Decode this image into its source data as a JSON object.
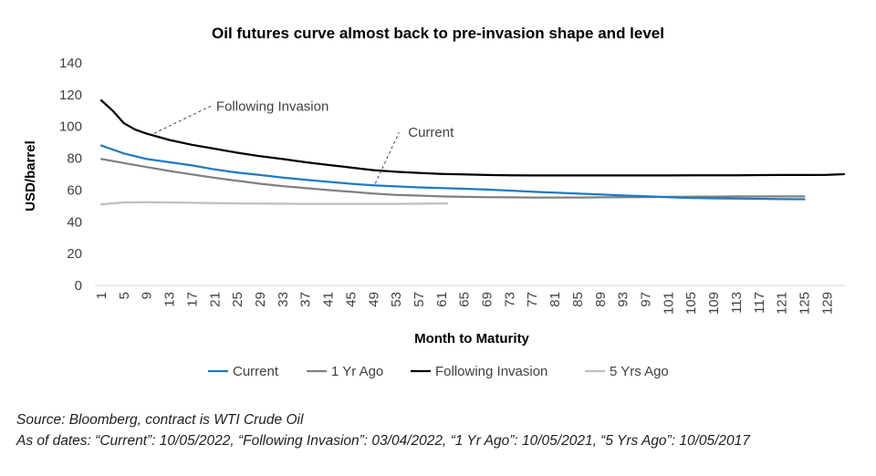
{
  "chart_data": {
    "type": "line",
    "title": "Oil futures curve almost back to pre-invasion  shape and level",
    "xlabel": "Month to Maturity",
    "ylabel": "USD/barrel",
    "xlim": [
      1,
      132
    ],
    "ylim": [
      0,
      140
    ],
    "yticks": [
      0,
      20,
      40,
      60,
      80,
      100,
      120,
      140
    ],
    "xtick_labels": [
      "1",
      "5",
      "9",
      "13",
      "17",
      "21",
      "25",
      "29",
      "33",
      "37",
      "41",
      "45",
      "49",
      "53",
      "57",
      "61",
      "65",
      "69",
      "73",
      "77",
      "81",
      "85",
      "89",
      "93",
      "97",
      "101",
      "105",
      "109",
      "113",
      "117",
      "121",
      "125",
      "129"
    ],
    "grid": false,
    "legend_position": "bottom",
    "series": [
      {
        "name": "Current",
        "color": "#1f7ac4",
        "points": [
          [
            1,
            88
          ],
          [
            5,
            83
          ],
          [
            9,
            79.5
          ],
          [
            13,
            77.5
          ],
          [
            17,
            75.5
          ],
          [
            21,
            73
          ],
          [
            25,
            71
          ],
          [
            29,
            69.5
          ],
          [
            33,
            67.8
          ],
          [
            37,
            66.5
          ],
          [
            41,
            65.2
          ],
          [
            45,
            64
          ],
          [
            49,
            63
          ],
          [
            53,
            62.3
          ],
          [
            57,
            61.7
          ],
          [
            61,
            61.2
          ],
          [
            65,
            60.8
          ],
          [
            69,
            60.3
          ],
          [
            73,
            59.7
          ],
          [
            77,
            59
          ],
          [
            81,
            58.4
          ],
          [
            85,
            57.8
          ],
          [
            89,
            57.2
          ],
          [
            93,
            56.6
          ],
          [
            97,
            56.1
          ],
          [
            101,
            55.5
          ],
          [
            105,
            55
          ],
          [
            109,
            54.8
          ],
          [
            113,
            54.6
          ],
          [
            117,
            54.5
          ],
          [
            121,
            54.3
          ],
          [
            125,
            54.2
          ]
        ]
      },
      {
        "name": "1 Yr Ago",
        "color": "#808080",
        "points": [
          [
            1,
            79.5
          ],
          [
            5,
            77
          ],
          [
            9,
            74.5
          ],
          [
            13,
            72
          ],
          [
            17,
            69.8
          ],
          [
            21,
            67.7
          ],
          [
            25,
            65.8
          ],
          [
            29,
            64
          ],
          [
            33,
            62.5
          ],
          [
            37,
            61.2
          ],
          [
            41,
            60
          ],
          [
            45,
            58.9
          ],
          [
            49,
            57.8
          ],
          [
            53,
            57
          ],
          [
            57,
            56.5
          ],
          [
            61,
            56
          ],
          [
            65,
            55.7
          ],
          [
            69,
            55.5
          ],
          [
            73,
            55.4
          ],
          [
            77,
            55.3
          ],
          [
            81,
            55.3
          ],
          [
            85,
            55.3
          ],
          [
            89,
            55.4
          ],
          [
            93,
            55.5
          ],
          [
            97,
            55.6
          ],
          [
            101,
            55.7
          ],
          [
            105,
            55.8
          ],
          [
            109,
            55.9
          ],
          [
            113,
            56
          ],
          [
            117,
            56
          ],
          [
            121,
            56
          ],
          [
            125,
            56
          ]
        ]
      },
      {
        "name": "Following Invasion",
        "color": "#000000",
        "points": [
          [
            1,
            116.5
          ],
          [
            3,
            110
          ],
          [
            5,
            102
          ],
          [
            7,
            98
          ],
          [
            9,
            95.5
          ],
          [
            11,
            93.5
          ],
          [
            13,
            91.5
          ],
          [
            17,
            88.5
          ],
          [
            21,
            86
          ],
          [
            25,
            83.5
          ],
          [
            29,
            81.3
          ],
          [
            33,
            79.5
          ],
          [
            37,
            77.5
          ],
          [
            41,
            75.8
          ],
          [
            45,
            74.2
          ],
          [
            49,
            72.5
          ],
          [
            53,
            71.5
          ],
          [
            57,
            70.8
          ],
          [
            61,
            70.2
          ],
          [
            65,
            69.8
          ],
          [
            69,
            69.5
          ],
          [
            73,
            69.3
          ],
          [
            77,
            69.2
          ],
          [
            81,
            69.2
          ],
          [
            85,
            69.2
          ],
          [
            89,
            69.2
          ],
          [
            93,
            69.2
          ],
          [
            97,
            69.2
          ],
          [
            101,
            69.2
          ],
          [
            105,
            69.3
          ],
          [
            109,
            69.3
          ],
          [
            113,
            69.3
          ],
          [
            117,
            69.4
          ],
          [
            121,
            69.5
          ],
          [
            125,
            69.5
          ],
          [
            129,
            69.6
          ],
          [
            132,
            70
          ]
        ]
      },
      {
        "name": "5 Yrs Ago",
        "color": "#bfbfbf",
        "points": [
          [
            1,
            51
          ],
          [
            5,
            52.2
          ],
          [
            9,
            52.3
          ],
          [
            13,
            52.2
          ],
          [
            17,
            52
          ],
          [
            21,
            51.8
          ],
          [
            25,
            51.6
          ],
          [
            29,
            51.5
          ],
          [
            33,
            51.4
          ],
          [
            37,
            51.3
          ],
          [
            41,
            51.3
          ],
          [
            45,
            51.3
          ],
          [
            49,
            51.3
          ],
          [
            53,
            51.3
          ],
          [
            57,
            51.4
          ],
          [
            61,
            51.6
          ],
          [
            62,
            51.6
          ]
        ]
      }
    ],
    "annotations": [
      {
        "text": "Following Invasion",
        "series": "Following Invasion",
        "at_month": 10
      },
      {
        "text": "Current",
        "series": "Current",
        "at_month": 49
      }
    ]
  },
  "footnotes": {
    "source": "Source: Bloomberg, contract is WTI Crude Oil",
    "as_of": "As of dates: “Current”: 10/05/2022, “Following Invasion”: 03/04/2022, “1 Yr Ago”: 10/05/2021, “5 Yrs Ago”: 10/05/2017"
  }
}
